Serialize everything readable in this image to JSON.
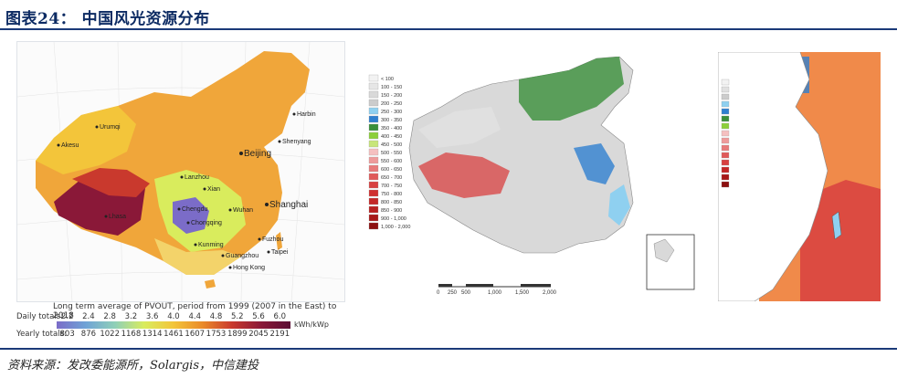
{
  "header": {
    "title": "图表24： 中国风光资源分布"
  },
  "panel_a": {
    "cities": [
      "Harbin",
      "Shenyang",
      "Beijing",
      "Urumqi",
      "Akesu",
      "Lanzhou",
      "Xian",
      "Chengdu",
      "Chongqing",
      "Wuhan",
      "Shanghai",
      "Lhasa",
      "Kunming",
      "Guangzhou",
      "Fuzhou",
      "Taipei",
      "Hong Kong"
    ],
    "legend": {
      "caption": "Long term average of PVOUT, period from 1999 (2007 in the East) to 2018",
      "daily_label": "Daily totals:",
      "yearly_label": "Yearly totals:",
      "daily": [
        "2.2",
        "2.4",
        "2.8",
        "3.2",
        "3.6",
        "4.0",
        "4.4",
        "4.8",
        "5.2",
        "5.6",
        "6.0"
      ],
      "yearly": [
        "803",
        "876",
        "1022",
        "1168",
        "1314",
        "1461",
        "1607",
        "1753",
        "1899",
        "2045",
        "2191"
      ],
      "unit": "kWh/kWp"
    }
  },
  "panel_b": {
    "legend": [
      "< 100",
      "100 - 150",
      "150 - 200",
      "200 - 250",
      "250 - 300",
      "300 - 350",
      "350 - 400",
      "400 - 450",
      "450 - 500",
      "500 - 550",
      "550 - 600",
      "600 - 650",
      "650 - 700",
      "700 - 750",
      "750 - 800",
      "800 - 850",
      "850 - 900",
      "900 - 1,000",
      "1,000 - 2,000"
    ],
    "legend_colors": [
      "#f2f2f2",
      "#e6e6e6",
      "#d9d9d9",
      "#cccccc",
      "#8fd0f0",
      "#2f7fcf",
      "#3a8f3a",
      "#8ccf3a",
      "#c8e67a",
      "#f5c0c0",
      "#ee9a9a",
      "#e87a7a",
      "#e05a5a",
      "#d84040",
      "#d02f2f",
      "#c42626",
      "#b81f1f",
      "#a81818",
      "#8c1010"
    ],
    "scale": [
      "0",
      "250",
      "500",
      "1,000",
      "1,500",
      "2,000"
    ]
  },
  "panel_c": {
    "legend_colors": [
      "#f2f2f2",
      "#e0e0e0",
      "#cccccc",
      "#8fd0f0",
      "#2f7fcf",
      "#3a8f3a",
      "#8ccf3a",
      "#f5c0c0",
      "#ee9a9a",
      "#e87a7a",
      "#e05a5a",
      "#d84040",
      "#c42626",
      "#a81818",
      "#8c1010"
    ]
  },
  "footer": {
    "source": "资料来源：发改委能源所，Solargis，中信建投"
  }
}
